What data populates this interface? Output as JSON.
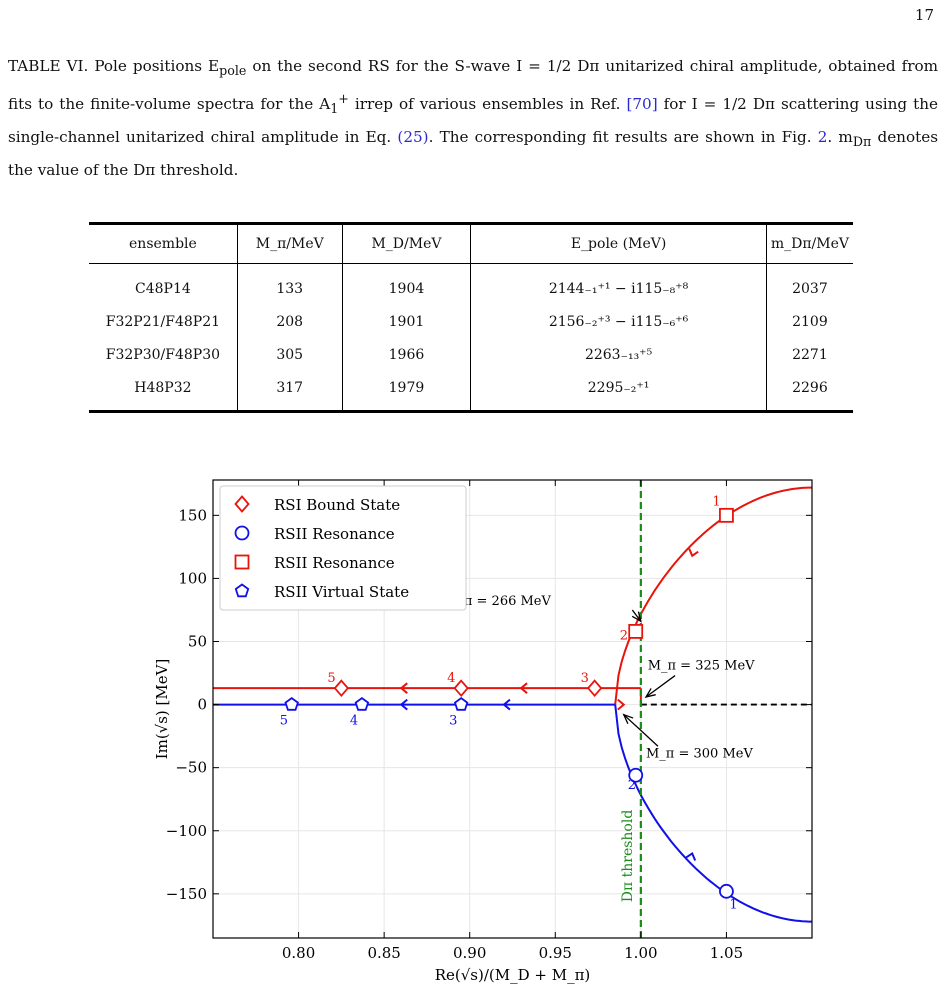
{
  "page": {
    "number": "17"
  },
  "caption": {
    "label": "TABLE VI.",
    "body_1": " Pole positions E",
    "pole_sub": "pole",
    "body_2": " on the second RS for the S-wave I = 1/2 Dπ unitarized chiral amplitude, obtained from fits to the finite-volume spectra for the A",
    "irrep_sub": "1",
    "irrep_sup": "+",
    "body_3": " irrep of various ensembles in Ref. ",
    "ref_cite": "[70]",
    "body_4": " for I = 1/2 Dπ scattering using the single-channel unitarized chiral amplitude in Eq. ",
    "eq_cite": "(25)",
    "body_5": ". The corresponding fit results are shown in Fig. ",
    "fig_cite": "2",
    "body_6": ". m",
    "threshold_sub": "Dπ",
    "body_7": " denotes the value of the Dπ threshold."
  },
  "table": {
    "headers": [
      "ensemble",
      "M_π/MeV",
      "M_D/MeV",
      "E_pole (MeV)",
      "m_Dπ/MeV"
    ],
    "rows": [
      [
        "C48P14",
        "133",
        "1904",
        "2144₋₁⁺¹ − i115₋₈⁺⁸",
        "2037"
      ],
      [
        "F32P21/F48P21",
        "208",
        "1901",
        "2156₋₂⁺³ − i115₋₆⁺⁶",
        "2109"
      ],
      [
        "F32P30/F48P30",
        "305",
        "1966",
        "2263₋₁₃⁺⁵",
        "2271"
      ],
      [
        "H48P32",
        "317",
        "1979",
        "2295₋₂⁺¹",
        "2296"
      ]
    ]
  },
  "chart_data": {
    "type": "scatter",
    "xlabel": "Re(√s)/(M_D + M_π)",
    "ylabel": "Im(√s) [MeV]",
    "xlim": [
      0.75,
      1.1
    ],
    "ylim": [
      -185,
      178
    ],
    "x_ticks": [
      0.8,
      0.85,
      0.9,
      0.95,
      1.0,
      1.05
    ],
    "x_tick_labels": [
      "0.80",
      "0.85",
      "0.90",
      "0.95",
      "1.00",
      "1.05"
    ],
    "y_ticks": [
      150,
      100,
      50,
      0,
      -50,
      -100,
      -150
    ],
    "y_tick_labels": [
      "150",
      "100",
      "50",
      "0",
      "−50",
      "−100",
      "−150"
    ],
    "grid": true,
    "legend_position": "top-left",
    "threshold_x": 1.0,
    "threshold_label": "Dπ threshold",
    "colors": {
      "red": "#e8140c",
      "blue": "#1010e8",
      "green": "#1a8c1a",
      "black": "#000000"
    },
    "series": [
      {
        "name": "RSI Bound State",
        "marker": "diamond",
        "color": "#e8140c",
        "points": [
          [
            0.825,
            13
          ],
          [
            0.895,
            13
          ],
          [
            0.973,
            13
          ]
        ],
        "labels": [
          "5",
          "4",
          "3"
        ]
      },
      {
        "name": "RSII Resonance",
        "marker": "circle",
        "color": "#1010e8",
        "points": [
          [
            1.05,
            -148
          ],
          [
            0.997,
            -56
          ]
        ],
        "labels": [
          "1",
          "2"
        ]
      },
      {
        "name": "RSII Resonance",
        "marker": "square",
        "color": "#e8140c",
        "points": [
          [
            1.05,
            150
          ],
          [
            0.997,
            58
          ]
        ],
        "labels": [
          "1",
          "2"
        ]
      },
      {
        "name": "RSII Virtual State",
        "marker": "pentagon",
        "color": "#1010e8",
        "points": [
          [
            0.796,
            0
          ],
          [
            0.837,
            0
          ],
          [
            0.895,
            0
          ]
        ],
        "labels": [
          "5",
          "4",
          "3"
        ]
      }
    ],
    "annotations": [
      {
        "text": "M_π = 266 MeV",
        "arrow_to": [
          1.0,
          66
        ]
      },
      {
        "text": "M_π = 325 MeV",
        "arrow_to": [
          1.003,
          6
        ]
      },
      {
        "text": "M_π = 300 MeV",
        "arrow_to": [
          0.99,
          -8
        ]
      }
    ]
  }
}
